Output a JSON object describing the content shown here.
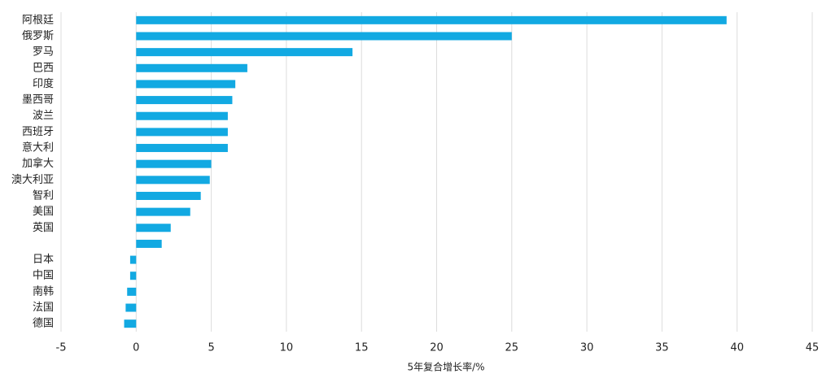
{
  "chart_data": {
    "type": "barh",
    "categories": [
      "阿根廷",
      "俄罗斯",
      "罗马",
      "巴西",
      "印度",
      "墨西哥",
      "波兰",
      "西班牙",
      "意大利",
      "加拿大",
      "澳大利亚",
      "智利",
      "美国",
      "英国",
      null,
      "日本",
      "中国",
      "南韩",
      "法国",
      "德国"
    ],
    "values": [
      39.3,
      25,
      14.4,
      7.4,
      6.6,
      6.4,
      6.1,
      6.1,
      6.1,
      5.0,
      4.9,
      4.3,
      3.6,
      2.3,
      1.7,
      -0.4,
      -0.4,
      -0.6,
      -0.7,
      -0.8
    ],
    "color": "#12a9e2",
    "xlabel": "5年复合增长率/%",
    "xlim": [
      -5,
      45
    ],
    "xticks": [
      -5,
      0,
      5,
      10,
      15,
      20,
      25,
      30,
      35,
      40,
      45
    ],
    "grid": true
  }
}
